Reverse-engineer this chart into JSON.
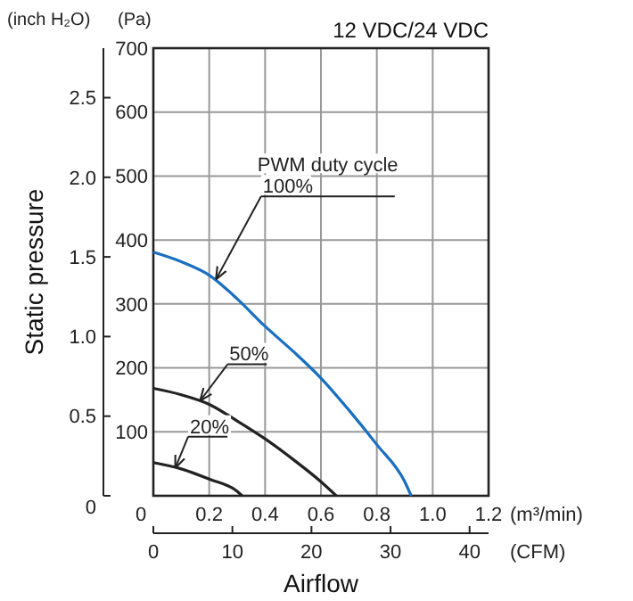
{
  "chart_data": {
    "type": "line",
    "subtitle": "12 VDC/24 VDC",
    "xlabel": "Airflow",
    "ylabel": "Static pressure",
    "xlim": [
      0,
      1.2
    ],
    "xticks": [
      0,
      0.2,
      0.4,
      0.6,
      0.8,
      {
        "value": 1,
        "label": "1.0"
      },
      1.2
    ],
    "x2lim": [
      0,
      42.4
    ],
    "x2ticks": [
      0,
      10,
      20,
      30,
      40
    ],
    "y2lim": [
      0,
      700
    ],
    "y2ticks": [
      {
        "value": 0,
        "label": null
      },
      100,
      200,
      300,
      400,
      500,
      600,
      700
    ],
    "ylim": [
      0,
      2.811
    ],
    "yticks": [
      0,
      0.5,
      {
        "value": 1,
        "label": "1.0"
      },
      1.5,
      {
        "value": 2,
        "label": "2.0"
      },
      2.5
    ],
    "grid": true,
    "marker": "none",
    "line_style": "solid",
    "series": [
      {
        "axis": "y2",
        "color": "#1a6fc0",
        "x": [
          0,
          0.1,
          0.2,
          0.3,
          0.4,
          0.5,
          0.6,
          0.7,
          0.8,
          0.9,
          0.923
        ],
        "values": [
          381,
          366,
          345,
          308,
          265,
          226,
          184,
          134,
          80,
          22,
          0
        ]
      },
      {
        "axis": "y2",
        "color": "#222222",
        "x": [
          0,
          0.1,
          0.2,
          0.3,
          0.4,
          0.5,
          0.6,
          0.655
        ],
        "values": [
          168,
          158,
          143,
          117,
          89,
          57,
          22,
          0
        ]
      },
      {
        "axis": "y2",
        "color": "#222222",
        "x": [
          0,
          0.1,
          0.2,
          0.3,
          0.318
        ],
        "values": [
          52,
          42,
          26,
          7,
          0
        ]
      }
    ],
    "annotations": [
      {
        "text": "100%",
        "x": 0.226,
        "y": 1.365
      },
      {
        "text": "50%",
        "x": 0.17,
        "y": 0.602
      },
      {
        "text": "20%",
        "x": 0.08,
        "y": 0.181
      },
      "PWM duty cycle",
      "(m³/min)",
      "(CFM)",
      "(Pa)",
      "(inch H₂O)"
    ]
  }
}
